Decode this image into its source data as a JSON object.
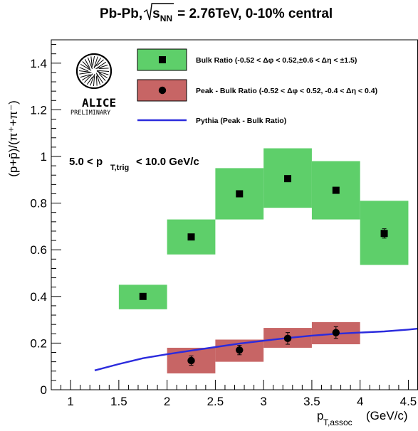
{
  "chart_data": {
    "type": "scatter",
    "title_main": "Pb-Pb, ",
    "title_energy": "= 2.76TeV, 0-10% central",
    "title_sqrt_var": "s",
    "title_sqrt_sub": "NN",
    "xlabel_main": "p",
    "xlabel_sub": "T,assoc",
    "xlabel_unit": "(GeV/c)",
    "ylabel": "(p+p̄)/(π⁺+π⁻)",
    "xlim": [
      0.8,
      4.6
    ],
    "ylim": [
      0,
      1.5
    ],
    "xticks": [
      1,
      1.5,
      2,
      2.5,
      3,
      3.5,
      4,
      4.5
    ],
    "xtick_labels": [
      "1",
      "1.5",
      "2",
      "2.5",
      "3",
      "3.5",
      "4",
      "4.5"
    ],
    "yticks": [
      0,
      0.2,
      0.4,
      0.6,
      0.8,
      1,
      1.2,
      1.4
    ],
    "ytick_labels": [
      "0",
      "0.2",
      "0.4",
      "0.6",
      "0.8",
      "1",
      "1.2",
      "1.4"
    ],
    "annotation_main": "5.0 < p",
    "annotation_sub": "T,trig",
    "annotation_tail": " < 10.0 GeV/c",
    "logo_text": "ALICE",
    "logo_sub": "PRELIMINARY",
    "legend_placement": "top-right",
    "series": [
      {
        "name": "Bulk Ratio (-0.52 < Δφ < 0.52,±0.6 < Δη < ±1.5)",
        "marker": "square",
        "color": "#000000",
        "box_color": "#5ecf6a",
        "x": [
          1.75,
          2.25,
          2.75,
          3.25,
          3.75,
          4.25
        ],
        "y": [
          0.4,
          0.655,
          0.84,
          0.905,
          0.855,
          0.67
        ],
        "yerr": [
          0.005,
          0.005,
          0.005,
          0.005,
          0.005,
          0.02
        ],
        "sys_low": [
          0.345,
          0.58,
          0.73,
          0.78,
          0.73,
          0.535
        ],
        "sys_high": [
          0.45,
          0.73,
          0.95,
          1.035,
          0.98,
          0.81
        ]
      },
      {
        "name": "Peak - Bulk Ratio (-0.52 < Δφ < 0.52, -0.4 < Δη < 0.4)",
        "marker": "circle",
        "color": "#000000",
        "box_color": "#c76565",
        "x": [
          2.25,
          2.75,
          3.25,
          3.75
        ],
        "y": [
          0.125,
          0.17,
          0.22,
          0.245
        ],
        "yerr": [
          0.02,
          0.02,
          0.025,
          0.025
        ],
        "sys_low": [
          0.07,
          0.12,
          0.18,
          0.195
        ],
        "sys_high": [
          0.18,
          0.215,
          0.265,
          0.29
        ]
      },
      {
        "name": "Pythia (Peak - Bulk Ratio)",
        "marker": "line",
        "color": "#2b2bdd",
        "x": [
          1.25,
          1.5,
          1.75,
          2.0,
          2.25,
          2.5,
          2.75,
          3.0,
          3.25,
          3.5,
          3.75,
          4.0,
          4.25,
          4.5,
          4.6
        ],
        "y": [
          0.083,
          0.11,
          0.135,
          0.152,
          0.168,
          0.183,
          0.198,
          0.21,
          0.222,
          0.232,
          0.24,
          0.245,
          0.25,
          0.258,
          0.262
        ]
      }
    ]
  }
}
